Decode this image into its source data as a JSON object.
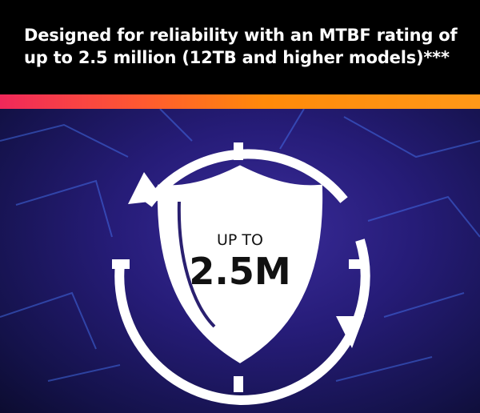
{
  "headline": "Designed for reliability with an MTBF rating of up to 2.5 million (12TB and higher models)***",
  "badge": {
    "label": "UP TO",
    "value": "2.5M"
  },
  "colors": {
    "header_bg": "#000000",
    "gradient_start": "#f0285a",
    "gradient_end": "#ff9818",
    "hero_bg": "#261c78"
  },
  "icons": [
    "circular-arrows-icon",
    "shield-icon"
  ]
}
